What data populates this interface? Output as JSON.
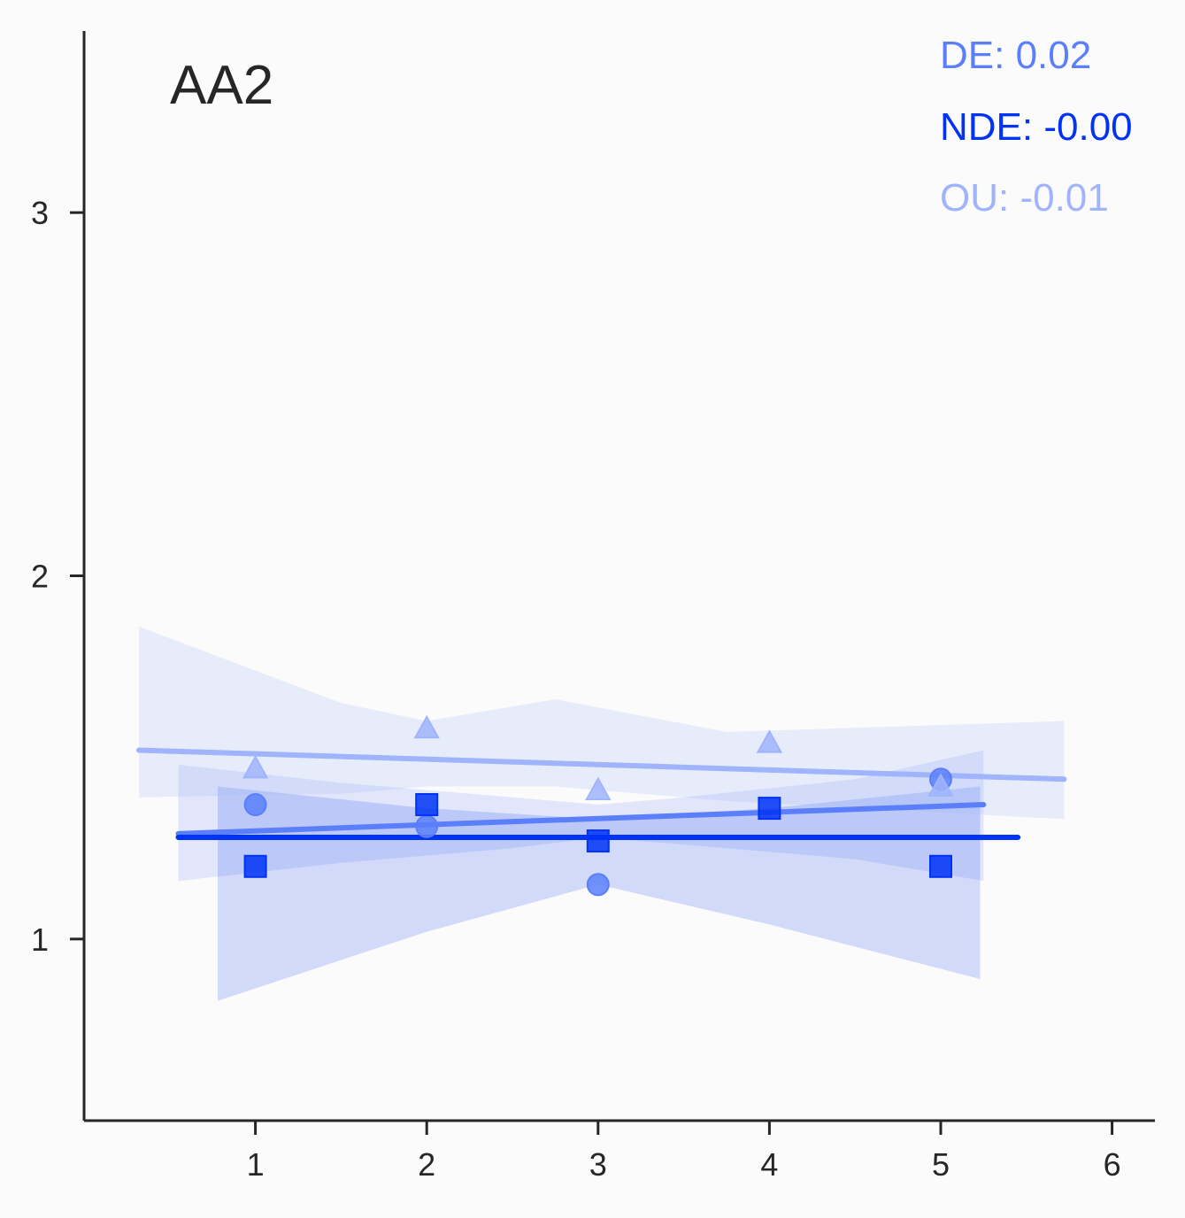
{
  "chart_data": {
    "type": "scatter",
    "title": "AA2",
    "xlabel": "",
    "ylabel": "",
    "xlim": [
      0.0,
      6.25
    ],
    "ylim": [
      0.5,
      3.5
    ],
    "x_ticks": [
      1,
      2,
      3,
      4,
      5,
      6
    ],
    "y_ticks": [
      1,
      2,
      3
    ],
    "grid": false,
    "legend": "none",
    "annotations": [
      {
        "text": "DE: 0.02",
        "color": "#5b7ffa"
      },
      {
        "text": "NDE: -0.00",
        "color": "#0033f5"
      },
      {
        "text": "OU: -0.01",
        "color": "#a0b4fc"
      }
    ],
    "series": [
      {
        "marker": "circle",
        "color": "#5b7ffa",
        "points": [
          [
            1,
            1.37
          ],
          [
            2,
            1.31
          ],
          [
            3,
            1.15
          ],
          [
            5,
            1.44
          ]
        ],
        "fit": {
          "x": [
            0.55,
            5.25
          ],
          "y": [
            1.29,
            1.37
          ]
        },
        "band": {
          "x": [
            0.55,
            1.5,
            2.5,
            3.0,
            3.5,
            4.5,
            5.25
          ],
          "upper": [
            1.48,
            1.43,
            1.39,
            1.37,
            1.39,
            1.44,
            1.52
          ],
          "lower": [
            1.16,
            1.21,
            1.25,
            1.28,
            1.26,
            1.22,
            1.16
          ]
        }
      },
      {
        "marker": "square",
        "color": "#0033f5",
        "points": [
          [
            1,
            1.2
          ],
          [
            2,
            1.37
          ],
          [
            3,
            1.27
          ],
          [
            4,
            1.36
          ],
          [
            5,
            1.2
          ]
        ],
        "fit": {
          "x": [
            0.55,
            5.45
          ],
          "y": [
            1.28,
            1.28
          ]
        },
        "band": {
          "x": [
            0.78,
            2.0,
            3.0,
            4.0,
            5.23
          ],
          "upper": [
            1.42,
            1.36,
            1.33,
            1.36,
            1.42
          ],
          "lower": [
            0.83,
            1.02,
            1.15,
            1.04,
            0.89
          ]
        }
      },
      {
        "marker": "triangle",
        "color": "#a0b4fc",
        "points": [
          [
            1,
            1.47
          ],
          [
            2,
            1.58
          ],
          [
            3,
            1.41
          ],
          [
            4,
            1.54
          ],
          [
            5,
            1.42
          ]
        ],
        "fit": {
          "x": [
            0.32,
            5.72
          ],
          "y": [
            1.52,
            1.44
          ]
        },
        "band": {
          "x": [
            0.32,
            1.5,
            2.0,
            2.75,
            3.75,
            5.72
          ],
          "upper": [
            1.86,
            1.65,
            1.6,
            1.66,
            1.57,
            1.6
          ],
          "lower": [
            1.39,
            1.4,
            1.42,
            1.42,
            1.38,
            1.33
          ]
        }
      }
    ]
  }
}
